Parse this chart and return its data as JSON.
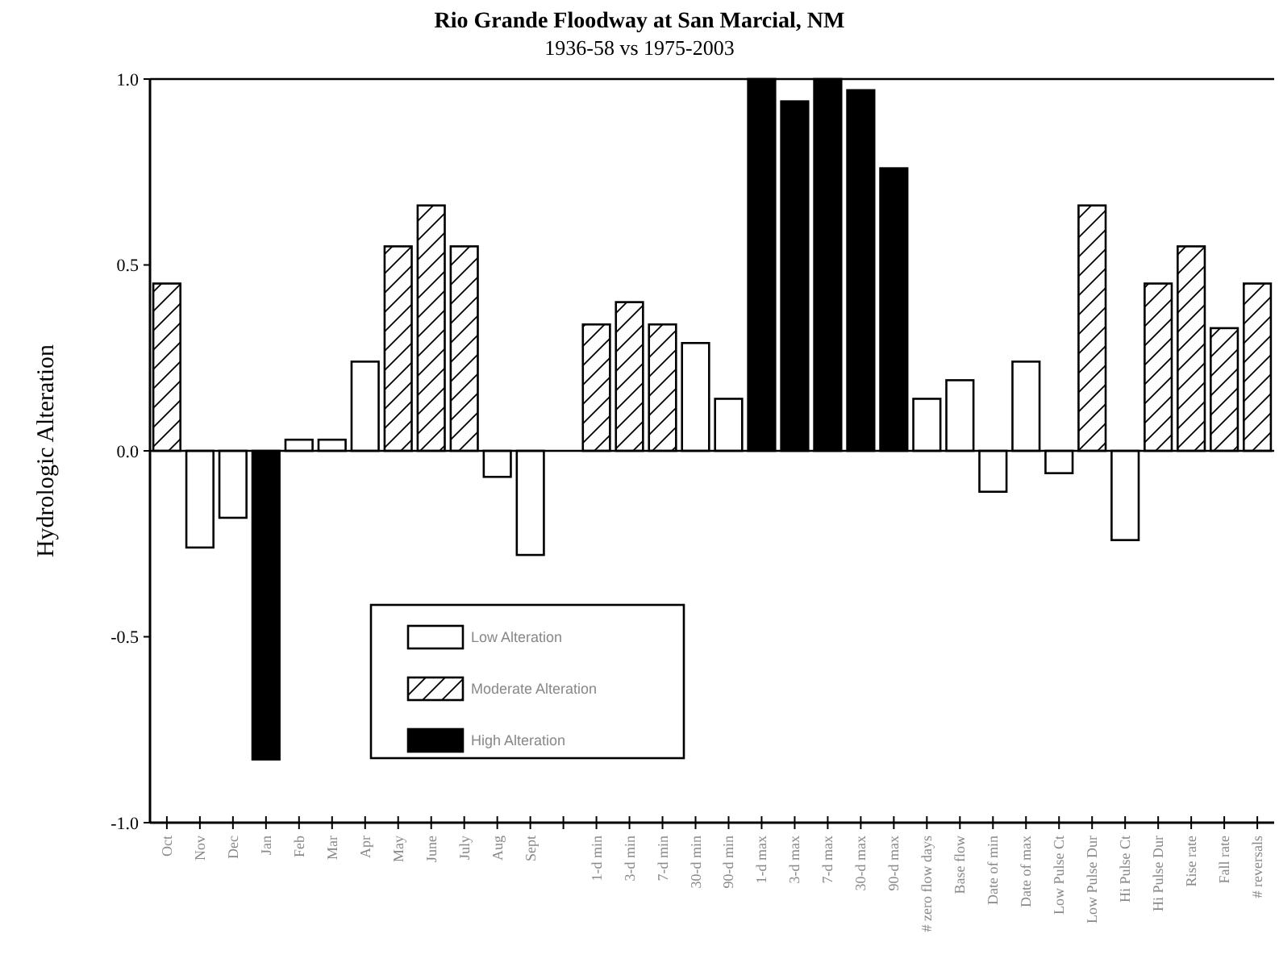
{
  "chart_data": {
    "type": "bar",
    "title": "Rio Grande Floodway at San Marcial, NM",
    "subtitle": "1936-58 vs 1975-2003",
    "ylabel": "Hydrologic Alteration",
    "categories": [
      "Oct",
      "Nov",
      "Dec",
      "Jan",
      "Feb",
      "Mar",
      "Apr",
      "May",
      "June",
      "July",
      "Aug",
      "Sept",
      null,
      "1-d min",
      "3-d min",
      "7-d min",
      "30-d min",
      "90-d min",
      "1-d max",
      "3-d max",
      "7-d max",
      "30-d max",
      "90-d max",
      "# zero flow days",
      "Base flow",
      "Date of min",
      "Date of max",
      "Low Pulse Ct",
      "Low Pulse Dur",
      "Hi Pulse Ct",
      "Hi Pulse Dur",
      "Rise rate",
      "Fall rate",
      "# reversals"
    ],
    "series": [
      {
        "name": "Low Alteration",
        "color": "#ffffff",
        "values": [
          null,
          -0.26,
          -0.18,
          null,
          0.03,
          0.03,
          0.24,
          null,
          null,
          null,
          -0.07,
          -0.28,
          null,
          null,
          null,
          null,
          0.29,
          0.14,
          null,
          null,
          null,
          null,
          null,
          0.14,
          0.19,
          -0.11,
          0.24,
          -0.06,
          null,
          -0.24,
          null,
          null,
          null,
          null
        ]
      },
      {
        "name": "Moderate Alteration",
        "color": "#000000",
        "values": [
          0.45,
          null,
          null,
          null,
          null,
          null,
          null,
          0.55,
          0.66,
          0.55,
          null,
          null,
          null,
          0.34,
          0.4,
          0.34,
          null,
          null,
          null,
          null,
          null,
          null,
          null,
          null,
          null,
          null,
          null,
          null,
          0.66,
          null,
          0.45,
          0.55,
          0.33,
          0.45
        ]
      },
      {
        "name": "High Alteration",
        "color": "#000000",
        "values": [
          null,
          null,
          null,
          -0.83,
          null,
          null,
          null,
          null,
          null,
          null,
          null,
          null,
          null,
          null,
          null,
          null,
          null,
          null,
          1.0,
          0.94,
          1.0,
          0.97,
          0.76,
          null,
          null,
          null,
          null,
          null,
          null,
          null,
          null,
          null,
          null,
          null
        ]
      }
    ],
    "ylim": [
      -1,
      1
    ],
    "yticks": [
      {
        "value": 1,
        "label": "1.0"
      },
      {
        "value": 0.5,
        "label": "0.5"
      },
      {
        "value": 0,
        "label": "0.0"
      },
      {
        "value": -0.5,
        "label": "-0.5"
      },
      {
        "value": -1,
        "label": "-1.0"
      }
    ],
    "legend": "bottom left"
  }
}
